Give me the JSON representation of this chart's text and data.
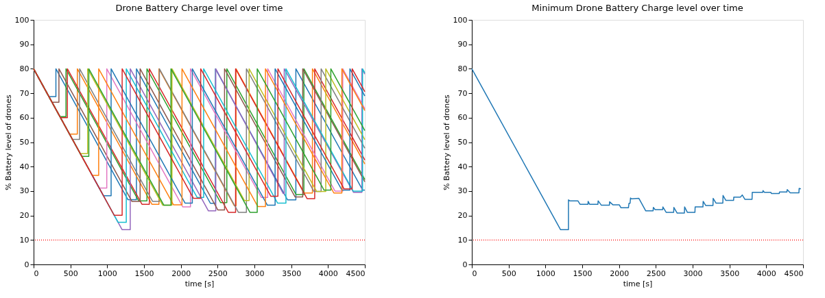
{
  "chart_data": [
    {
      "type": "line",
      "title": "Drone Battery Charge level over time",
      "xlabel": "time [s]",
      "ylabel": "% Battery level of drones",
      "xlim": [
        0,
        4500
      ],
      "xticks": [
        0,
        500,
        1000,
        1500,
        2000,
        2500,
        3000,
        3500,
        4000,
        4500
      ],
      "ylim": [
        0,
        100
      ],
      "yticks": [
        0,
        10,
        20,
        30,
        40,
        50,
        60,
        70,
        80,
        90,
        100
      ],
      "legend": false,
      "grid": false,
      "ref_lines": [
        {
          "axis": "y",
          "value": 10,
          "color": "#ff0000",
          "line_style": "dotted"
        }
      ],
      "series": [
        {
          "color": "#1f77b4",
          "x": [
            0,
            208,
            303,
            303,
            1281,
            1397,
            1397,
            2402,
            2470,
            2470,
            3450,
            3563,
            3563,
            4470,
            4500
          ],
          "values": [
            80,
            68.6,
            68.6,
            80,
            26.5,
            26.5,
            80,
            25,
            25,
            80,
            26.4,
            26.4,
            80,
            30.4,
            30.4
          ]
        },
        {
          "color": "#ff7f0e",
          "x": [
            0,
            488,
            594,
            594,
            1607,
            1703,
            1703,
            2727,
            2750,
            2750,
            3679,
            3788,
            3788,
            4500
          ],
          "values": [
            80,
            53.3,
            53.3,
            80,
            24.6,
            24.6,
            80,
            24,
            24,
            80,
            29.2,
            29.2,
            80,
            41.1
          ]
        },
        {
          "color": "#2ca02c",
          "x": [
            0,
            358,
            440,
            440,
            1427,
            1540,
            1540,
            2540,
            2625,
            2625,
            3565,
            3672,
            3672,
            4500
          ],
          "values": [
            80,
            60.4,
            60.4,
            80,
            26,
            26,
            80,
            25.3,
            25.3,
            80,
            28.6,
            28.6,
            80,
            34.7
          ]
        },
        {
          "color": "#d62728",
          "x": [
            0,
            366,
            459,
            459,
            1472,
            1572,
            1572,
            2645,
            2744,
            2744,
            3715,
            3819,
            3819,
            4500
          ],
          "values": [
            80,
            60,
            60,
            80,
            24.6,
            24.6,
            80,
            21.3,
            21.3,
            80,
            26.9,
            26.9,
            80,
            42.7
          ]
        },
        {
          "color": "#9467bd",
          "x": [
            0,
            1203,
            1313,
            1313,
            2375,
            2475,
            2475,
            3390,
            3405,
            3405,
            4345,
            4460,
            4460,
            4500
          ],
          "values": [
            80,
            14.2,
            14.2,
            80,
            21.9,
            21.9,
            80,
            29,
            29,
            80,
            29.5,
            29.5,
            80,
            77.8
          ]
        },
        {
          "color": "#8c564b",
          "x": [
            0,
            250,
            344,
            344,
            1335,
            1447,
            1447,
            2502,
            2594,
            2594,
            3552,
            3656,
            3656,
            4500
          ],
          "values": [
            80,
            66.3,
            66.3,
            80,
            25.8,
            25.8,
            80,
            22.3,
            22.3,
            80,
            27.6,
            27.6,
            80,
            33.8
          ]
        },
        {
          "color": "#e377c2",
          "x": [
            0,
            892,
            994,
            994,
            2027,
            2131,
            2131,
            3093,
            3180,
            3180,
            4094,
            4200,
            4200,
            4500
          ],
          "values": [
            80,
            31.2,
            31.2,
            80,
            23.5,
            23.5,
            80,
            27.4,
            27.4,
            80,
            30,
            30,
            80,
            63.6
          ]
        },
        {
          "color": "#7f7f7f",
          "x": [
            0,
            528,
            625,
            625,
            1616,
            1709,
            1709,
            2782,
            2891,
            2891,
            3809,
            3906,
            3906,
            4500
          ],
          "values": [
            80,
            51.1,
            51.1,
            80,
            25.8,
            25.8,
            80,
            21.3,
            21.3,
            80,
            29.8,
            29.8,
            80,
            47.5
          ]
        },
        {
          "color": "#bcbd22",
          "x": [
            0,
            634,
            734,
            734,
            1754,
            1880,
            1880,
            2865,
            2928,
            2928,
            3846,
            3969,
            3969,
            4500
          ],
          "values": [
            80,
            45.3,
            45.3,
            80,
            24.2,
            24.2,
            80,
            26.1,
            26.1,
            80,
            29.8,
            29.8,
            80,
            51
          ]
        },
        {
          "color": "#17becf",
          "x": [
            0,
            1148,
            1259,
            1259,
            2221,
            2310,
            2310,
            3314,
            3428,
            3428,
            4342,
            4469,
            4469,
            4500
          ],
          "values": [
            80,
            17.2,
            17.2,
            80,
            27.4,
            27.4,
            80,
            25.1,
            25.1,
            80,
            30,
            30,
            80,
            78.3
          ]
        },
        {
          "color": "#1f77b4",
          "x": [
            0,
            949,
            1053,
            1053,
            2057,
            2156,
            2156,
            3176,
            3281,
            3281,
            4188,
            4297,
            4297,
            4500
          ],
          "values": [
            80,
            28.1,
            28.1,
            80,
            25.1,
            25.1,
            80,
            24.2,
            24.2,
            80,
            30.4,
            30.4,
            80,
            68.9
          ]
        },
        {
          "color": "#ff7f0e",
          "x": [
            0,
            797,
            884,
            884,
            1900,
            2016,
            2016,
            3045,
            3150,
            3150,
            4079,
            4188,
            4188,
            4500
          ],
          "values": [
            80,
            36.4,
            36.4,
            80,
            24.4,
            24.4,
            80,
            23.7,
            23.7,
            80,
            29.2,
            29.2,
            80,
            62.9
          ]
        },
        {
          "color": "#2ca02c",
          "x": [
            0,
            654,
            750,
            750,
            1770,
            1866,
            1866,
            2939,
            3038,
            3038,
            3945,
            4038,
            4038,
            4500
          ],
          "values": [
            80,
            44.2,
            44.2,
            80,
            24.2,
            24.2,
            80,
            21.3,
            21.3,
            80,
            30.4,
            30.4,
            80,
            54.7
          ]
        },
        {
          "color": "#d62728",
          "x": [
            0,
            1095,
            1203,
            1203,
            2172,
            2270,
            2270,
            3222,
            3319,
            3319,
            4217,
            4328,
            4328,
            4500
          ],
          "values": [
            80,
            20.1,
            20.1,
            80,
            27,
            27,
            80,
            27.9,
            27.9,
            80,
            30.9,
            30.9,
            80,
            70.6
          ]
        }
      ]
    },
    {
      "type": "line",
      "title": "Minimum Drone Battery Charge level over time",
      "xlabel": "time [s]",
      "ylabel": "% Battery level of drones",
      "xlim": [
        0,
        4500
      ],
      "xticks": [
        0,
        500,
        1000,
        1500,
        2000,
        2500,
        3000,
        3500,
        4000,
        4500
      ],
      "ylim": [
        0,
        100
      ],
      "yticks": [
        0,
        10,
        20,
        30,
        40,
        50,
        60,
        70,
        80,
        90,
        100
      ],
      "legend": false,
      "grid": false,
      "ref_lines": [
        {
          "axis": "y",
          "value": 10,
          "color": "#ff0000",
          "line_style": "dotted"
        }
      ],
      "series": [
        {
          "color": "#1f77b4",
          "x": [
            0,
            1206,
            1313,
            1313,
            1330,
            1441,
            1470,
            1578,
            1580,
            1600,
            1713,
            1716,
            1760,
            1869,
            1872,
            1916,
            2003,
            2025,
            2128,
            2135,
            2150,
            2156,
            2165,
            2270,
            2363,
            2463,
            2466,
            2490,
            2593,
            2596,
            2640,
            2742,
            2745,
            2790,
            2888,
            2891,
            2928,
            3031,
            3034,
            3140,
            3143,
            3177,
            3276,
            3279,
            3317,
            3410,
            3413,
            3450,
            3556,
            3559,
            3649,
            3674,
            3711,
            3807,
            3810,
            3953,
            3956,
            3975,
            4062,
            4070,
            4177,
            4180,
            4280,
            4285,
            4326,
            4444,
            4447,
            4470
          ],
          "values": [
            80,
            14.2,
            14.2,
            26.4,
            26,
            26,
            24.6,
            24.6,
            25.8,
            24.6,
            24.6,
            26,
            24.2,
            24.2,
            25.6,
            24.4,
            24.4,
            23.2,
            23.2,
            25,
            25,
            27.2,
            26.8,
            27,
            21.9,
            21.9,
            23.3,
            22.4,
            22.4,
            23.5,
            21.3,
            21.3,
            23.3,
            21,
            21,
            23.5,
            21.3,
            21.3,
            23.5,
            23.5,
            25.8,
            24.1,
            24.1,
            27,
            25.1,
            25.1,
            28.2,
            26.2,
            26.2,
            27.5,
            27.5,
            28.4,
            26.6,
            26.6,
            29.5,
            29.5,
            30.2,
            29.5,
            29.5,
            29,
            29,
            29.6,
            29.6,
            30.6,
            29.3,
            29.3,
            31.1,
            30.9
          ]
        }
      ]
    }
  ]
}
